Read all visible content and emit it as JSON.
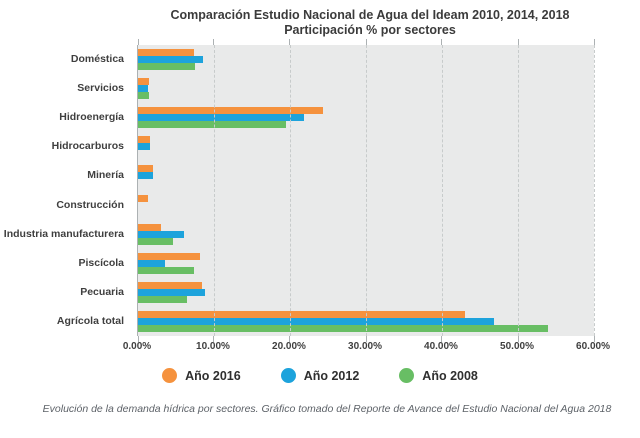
{
  "title": {
    "line1": "Comparación Estudio Nacional de Agua del Ideam 2010, 2014, 2018",
    "line2": "Participación % por sectores"
  },
  "colors": {
    "ano_2016": "#f5923e",
    "ano_2012": "#1da3dc",
    "ano_2008": "#68be64",
    "plot_background": "#e9eaea",
    "gridline": "#c7cbcb",
    "axis_line": "#acb1b3",
    "text": "#3f3f3f"
  },
  "chart_data": {
    "type": "bar",
    "orientation": "horizontal",
    "title": "Comparación Estudio Nacional de Agua del Ideam 2010, 2014, 2018",
    "subtitle": "Participación % por sectores",
    "categories": [
      "Doméstica",
      "Servicios",
      "Hidroenergía",
      "Hidrocarburos",
      "Minería",
      "Construcción",
      "Industria manufacturera",
      "Piscícola",
      "Pecuaria",
      "Agrícola total"
    ],
    "series": [
      {
        "name": "Año 2016",
        "color": "#f5923e",
        "values": [
          7.4,
          1.5,
          24.3,
          1.6,
          2.0,
          1.3,
          3.0,
          8.2,
          8.4,
          43.0
        ]
      },
      {
        "name": "Año 2012",
        "color": "#1da3dc",
        "values": [
          8.5,
          1.3,
          21.8,
          1.6,
          2.0,
          0,
          6.1,
          3.6,
          8.8,
          46.9
        ]
      },
      {
        "name": "Año 2008",
        "color": "#68be64",
        "values": [
          7.5,
          1.5,
          19.5,
          0,
          0,
          0,
          4.6,
          7.4,
          6.4,
          53.9
        ]
      }
    ],
    "x_ticks": [
      "0.00%",
      "10.00%",
      "20.00%",
      "30.00%",
      "40.00%",
      "50.00%",
      "60.00%"
    ],
    "xlim": [
      0,
      60
    ],
    "xlabel": "",
    "ylabel": "",
    "grid": "dashed-vertical",
    "legend_position": "bottom"
  },
  "caption": "Evolución de la demanda hídrica por sectores. Gráfico tomado del Reporte de Avance del Estudio Nacional del Agua 2018"
}
